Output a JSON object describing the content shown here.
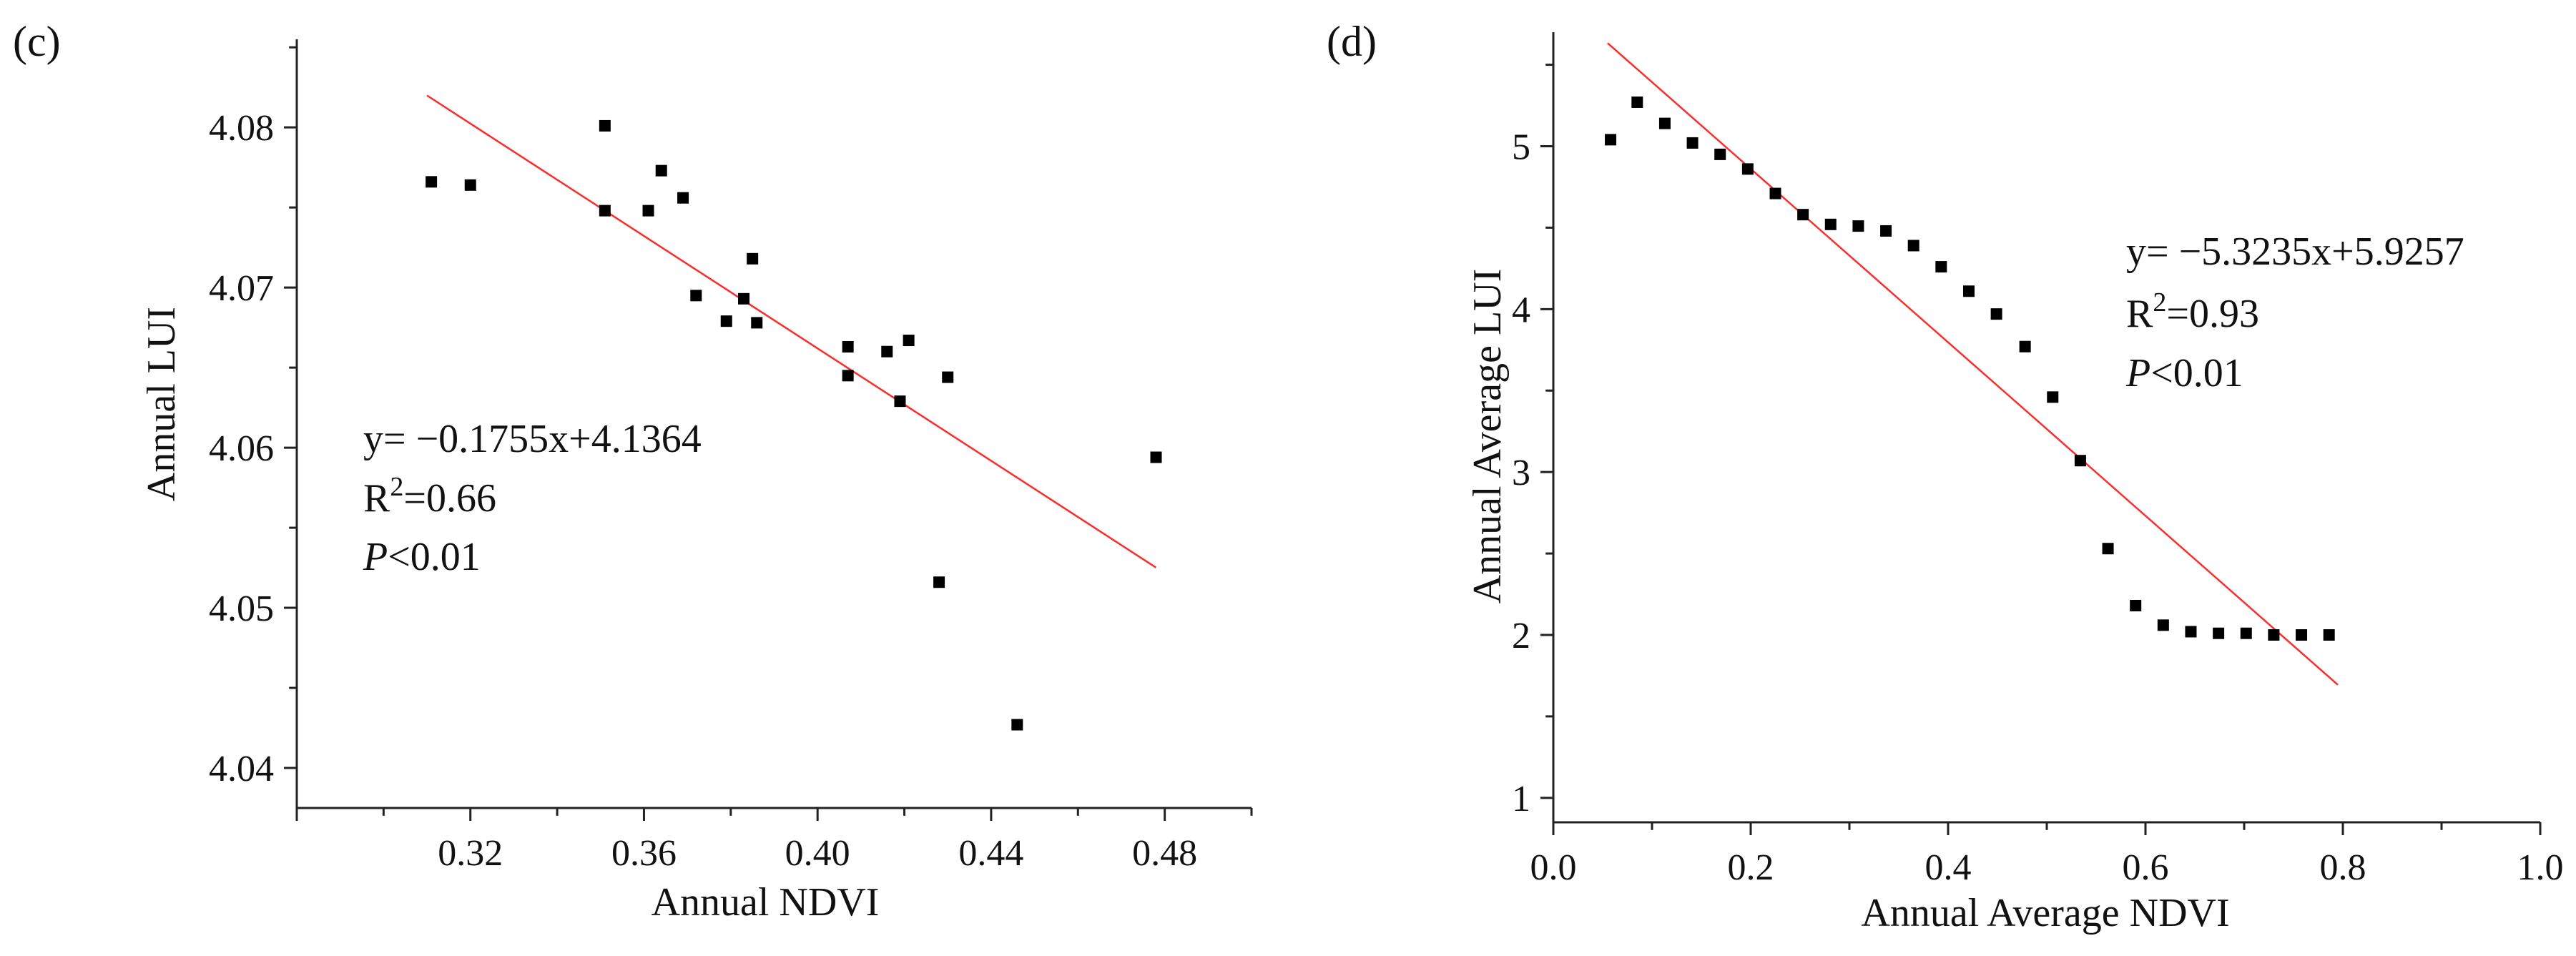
{
  "chart_data": [
    {
      "panel": "(c)",
      "type": "scatter",
      "xlabel": "Annual NDVI",
      "ylabel": "Annual  LUI",
      "xlim": [
        0.28,
        0.5
      ],
      "ylim": [
        4.0375,
        4.0855
      ],
      "xticks": [
        0.32,
        0.36,
        0.4,
        0.44,
        0.48
      ],
      "xtick_labels": [
        "0.32",
        "0.36",
        "0.40",
        "0.44",
        "0.48"
      ],
      "yticks": [
        4.04,
        4.05,
        4.06,
        4.07,
        4.08
      ],
      "ytick_labels": [
        "4.04",
        "4.05",
        "4.06",
        "4.07",
        "4.08"
      ],
      "x": [
        0.311,
        0.32,
        0.351,
        0.351,
        0.361,
        0.364,
        0.369,
        0.372,
        0.379,
        0.383,
        0.385,
        0.386,
        0.407,
        0.407,
        0.416,
        0.419,
        0.421,
        0.428,
        0.43,
        0.446,
        0.478
      ],
      "y": [
        4.0766,
        4.0764,
        4.0801,
        4.0748,
        4.0748,
        4.0773,
        4.0756,
        4.0695,
        4.0679,
        4.0693,
        4.0718,
        4.0678,
        4.0645,
        4.0663,
        4.066,
        4.0629,
        4.0667,
        4.0516,
        4.0644,
        4.0427,
        4.0594
      ],
      "fit": {
        "slope": -0.1755,
        "intercept": 4.1364,
        "x_range": [
          0.31,
          0.478
        ]
      },
      "annotations": {
        "equation": "y= −0.1755x+4.1364",
        "r2_prefix": "R",
        "r2_sup": "2",
        "r2_value": "=0.66",
        "p_italic": "P",
        "p_rest": "<0.01"
      }
    },
    {
      "panel": "(d)",
      "type": "scatter",
      "xlabel": "Annual Average NDVI",
      "ylabel": "Annual Average  LUI",
      "xlim": [
        0.0,
        1.0
      ],
      "ylim": [
        0.85,
        5.7
      ],
      "xticks": [
        0.0,
        0.2,
        0.4,
        0.6,
        0.8,
        1.0
      ],
      "xtick_labels": [
        "0.0",
        "0.2",
        "0.4",
        "0.6",
        "0.8",
        "1.0"
      ],
      "yticks": [
        1,
        2,
        3,
        4,
        5
      ],
      "ytick_labels": [
        "1",
        "2",
        "3",
        "4",
        "5"
      ],
      "x": [
        0.058,
        0.085,
        0.113,
        0.141,
        0.169,
        0.197,
        0.225,
        0.253,
        0.281,
        0.309,
        0.337,
        0.365,
        0.393,
        0.421,
        0.449,
        0.478,
        0.506,
        0.534,
        0.562,
        0.59,
        0.618,
        0.646,
        0.674,
        0.702,
        0.73,
        0.758,
        0.786
      ],
      "y": [
        5.04,
        5.27,
        5.14,
        5.02,
        4.95,
        4.86,
        4.71,
        4.58,
        4.52,
        4.51,
        4.48,
        4.39,
        4.26,
        4.11,
        3.97,
        3.77,
        3.46,
        3.07,
        2.53,
        2.18,
        2.06,
        2.02,
        2.01,
        2.01,
        2.0,
        2.0,
        2.0
      ],
      "fit": {
        "slope": -5.3235,
        "intercept": 5.9257,
        "x_range": [
          0.055,
          0.795
        ]
      },
      "annotations": {
        "equation": "y= −5.3235x+5.9257",
        "r2_prefix": "R",
        "r2_sup": "2",
        "r2_value": "=0.93",
        "p_italic": "P",
        "p_rest": "<0.01"
      }
    }
  ]
}
